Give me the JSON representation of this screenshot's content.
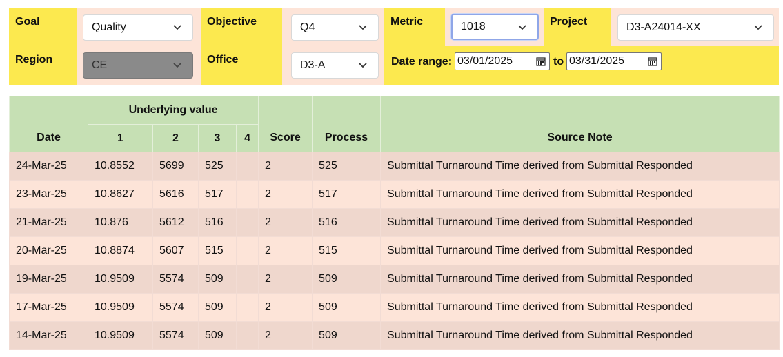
{
  "filters": {
    "goal": {
      "label": "Goal",
      "value": "Quality"
    },
    "objective": {
      "label": "Objective",
      "value": "Q4"
    },
    "metric": {
      "label": "Metric",
      "value": "1018"
    },
    "project": {
      "label": "Project",
      "value": "D3-A24014-XX"
    },
    "region": {
      "label": "Region",
      "value": "CE",
      "disabled": true
    },
    "office": {
      "label": "Office",
      "value": "D3-A"
    },
    "date_range": {
      "label": "Date range:",
      "from": "03/01/2025",
      "to_label": "to",
      "to": "03/31/2025"
    }
  },
  "table": {
    "headers": {
      "date": "Date",
      "underlying": "Underlying value",
      "sub": [
        "1",
        "2",
        "3",
        "4"
      ],
      "score": "Score",
      "process": "Process",
      "source_note": "Source Note"
    },
    "rows": [
      {
        "date": "24-Mar-25",
        "v1": "10.8552",
        "v2": "5699",
        "v3": "525",
        "v4": "",
        "score": "2",
        "process": "525",
        "note": "Submittal Turnaround Time derived from Submittal Responded"
      },
      {
        "date": "23-Mar-25",
        "v1": "10.8627",
        "v2": "5616",
        "v3": "517",
        "v4": "",
        "score": "2",
        "process": "517",
        "note": "Submittal Turnaround Time derived from Submittal Responded"
      },
      {
        "date": "21-Mar-25",
        "v1": "10.876",
        "v2": "5612",
        "v3": "516",
        "v4": "",
        "score": "2",
        "process": "516",
        "note": "Submittal Turnaround Time derived from Submittal Responded"
      },
      {
        "date": "20-Mar-25",
        "v1": "10.8874",
        "v2": "5607",
        "v3": "515",
        "v4": "",
        "score": "2",
        "process": "515",
        "note": "Submittal Turnaround Time derived from Submittal Responded"
      },
      {
        "date": "19-Mar-25",
        "v1": "10.9509",
        "v2": "5574",
        "v3": "509",
        "v4": "",
        "score": "2",
        "process": "509",
        "note": "Submittal Turnaround Time derived from Submittal Responded"
      },
      {
        "date": "17-Mar-25",
        "v1": "10.9509",
        "v2": "5574",
        "v3": "509",
        "v4": "",
        "score": "2",
        "process": "509",
        "note": "Submittal Turnaround Time derived from Submittal Responded"
      },
      {
        "date": "14-Mar-25",
        "v1": "10.9509",
        "v2": "5574",
        "v3": "509",
        "v4": "",
        "score": "2",
        "process": "509",
        "note": "Submittal Turnaround Time derived from Submittal Responded"
      }
    ]
  },
  "colors": {
    "label_bg": "#fce94f",
    "filter_bg": "#fde4d8",
    "header_bg": "#c6e0b4",
    "row_odd": "#efd7cd",
    "row_even": "#fde4d8"
  }
}
